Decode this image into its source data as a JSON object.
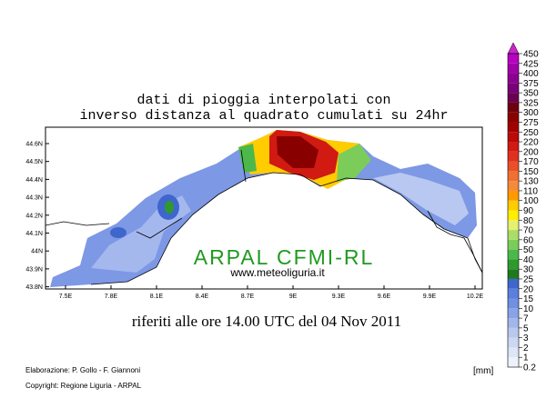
{
  "header": {
    "title_line1": "dati di pioggia interpolati con",
    "title_line2": "inverso distanza al quadrato cumulati su 24hr"
  },
  "map": {
    "lat_labels": [
      "44.6N",
      "44.5N",
      "44.4N",
      "44.3N",
      "44.2N",
      "44.1N",
      "44N",
      "43.9N",
      "43.8N"
    ],
    "lon_labels": [
      "7.5E",
      "7.8E",
      "8.1E",
      "8.4E",
      "8.7E",
      "9E",
      "9.3E",
      "9.6E",
      "9.9E",
      "10.2E"
    ],
    "watermark": "ARPAL CFMI-RL",
    "website": "www.meteoliguria.it"
  },
  "subtitle": "riferiti alle ore 14.00 UTC del 04 Nov 2011",
  "footer": {
    "credits": "Elaborazione: P. Gollo - F. Giannoni",
    "copyright": "Copyright: Regione Liguria - ARPAL",
    "unit": "[mm]"
  },
  "legend": {
    "items": [
      {
        "value": "0.2",
        "color": "#eef2fa"
      },
      {
        "value": "1",
        "color": "#dde6f6"
      },
      {
        "value": "2",
        "color": "#ccd8f2"
      },
      {
        "value": "3",
        "color": "#b8c8ee"
      },
      {
        "value": "5",
        "color": "#a2b6ea"
      },
      {
        "value": "7",
        "color": "#8aa2e6"
      },
      {
        "value": "10",
        "color": "#7090e2"
      },
      {
        "value": "15",
        "color": "#5a7fdc"
      },
      {
        "value": "20",
        "color": "#3f66cc"
      },
      {
        "value": "25",
        "color": "#1f7a1f"
      },
      {
        "value": "30",
        "color": "#2e9a2e"
      },
      {
        "value": "40",
        "color": "#4cb84c"
      },
      {
        "value": "50",
        "color": "#7ccc5a"
      },
      {
        "value": "60",
        "color": "#aadd66"
      },
      {
        "value": "70",
        "color": "#e6f070"
      },
      {
        "value": "80",
        "color": "#ffee00"
      },
      {
        "value": "90",
        "color": "#ffcc00"
      },
      {
        "value": "100",
        "color": "#ff9900"
      },
      {
        "value": "110",
        "color": "#f58a3a"
      },
      {
        "value": "130",
        "color": "#f07030"
      },
      {
        "value": "150",
        "color": "#ea5028"
      },
      {
        "value": "170",
        "color": "#e03020"
      },
      {
        "value": "200",
        "color": "#d01a12"
      },
      {
        "value": "220",
        "color": "#bb0a0a"
      },
      {
        "value": "250",
        "color": "#a00000"
      },
      {
        "value": "275",
        "color": "#880000"
      },
      {
        "value": "300",
        "color": "#6e0010"
      },
      {
        "value": "325",
        "color": "#6a0050"
      },
      {
        "value": "350",
        "color": "#780078"
      },
      {
        "value": "375",
        "color": "#8c0090"
      },
      {
        "value": "400",
        "color": "#a000a8"
      },
      {
        "value": "425",
        "color": "#b800c0"
      },
      {
        "value": "450",
        "color": "#cc22cc"
      }
    ]
  }
}
